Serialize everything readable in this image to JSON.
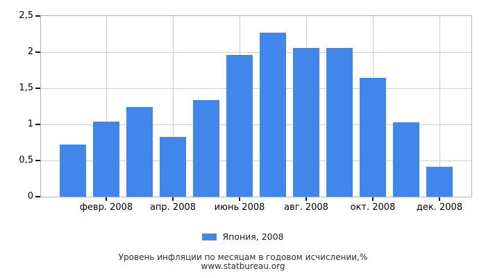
{
  "chart_data": {
    "type": "bar",
    "title": "Уровень инфляции по месяцам в годовом исчислении,%",
    "source": "www.statbureau.org",
    "legend": {
      "label": "Япония, 2008"
    },
    "bar_color": "#4187EB",
    "ylim": [
      0,
      2.5
    ],
    "grid": true,
    "legend_position": "bottom-center",
    "y_axis": {
      "tick_values": [
        0,
        0.5,
        1,
        1.5,
        2,
        2.5
      ],
      "tick_labels": [
        "0",
        "0,5",
        "1",
        "1,5",
        "2",
        "2,5"
      ]
    },
    "x_axis": {
      "tick_bar_indexes": [
        1,
        3,
        5,
        7,
        9,
        11
      ],
      "tick_labels": [
        "февр. 2008",
        "апр. 2008",
        "июнь 2008",
        "авг. 2008",
        "окт. 2008",
        "дек. 2008"
      ]
    },
    "series": [
      {
        "name": "Япония, 2008",
        "values": [
          0.72,
          1.04,
          1.24,
          0.83,
          1.34,
          1.96,
          2.27,
          2.06,
          2.06,
          1.64,
          1.03,
          0.41
        ]
      }
    ]
  },
  "colors": {
    "bar": "#4187EB",
    "grid_line": "#cccccc",
    "axis_border": "#b3b3b3",
    "axis_text": "#000000",
    "caption_text": "#2e2e2e"
  }
}
